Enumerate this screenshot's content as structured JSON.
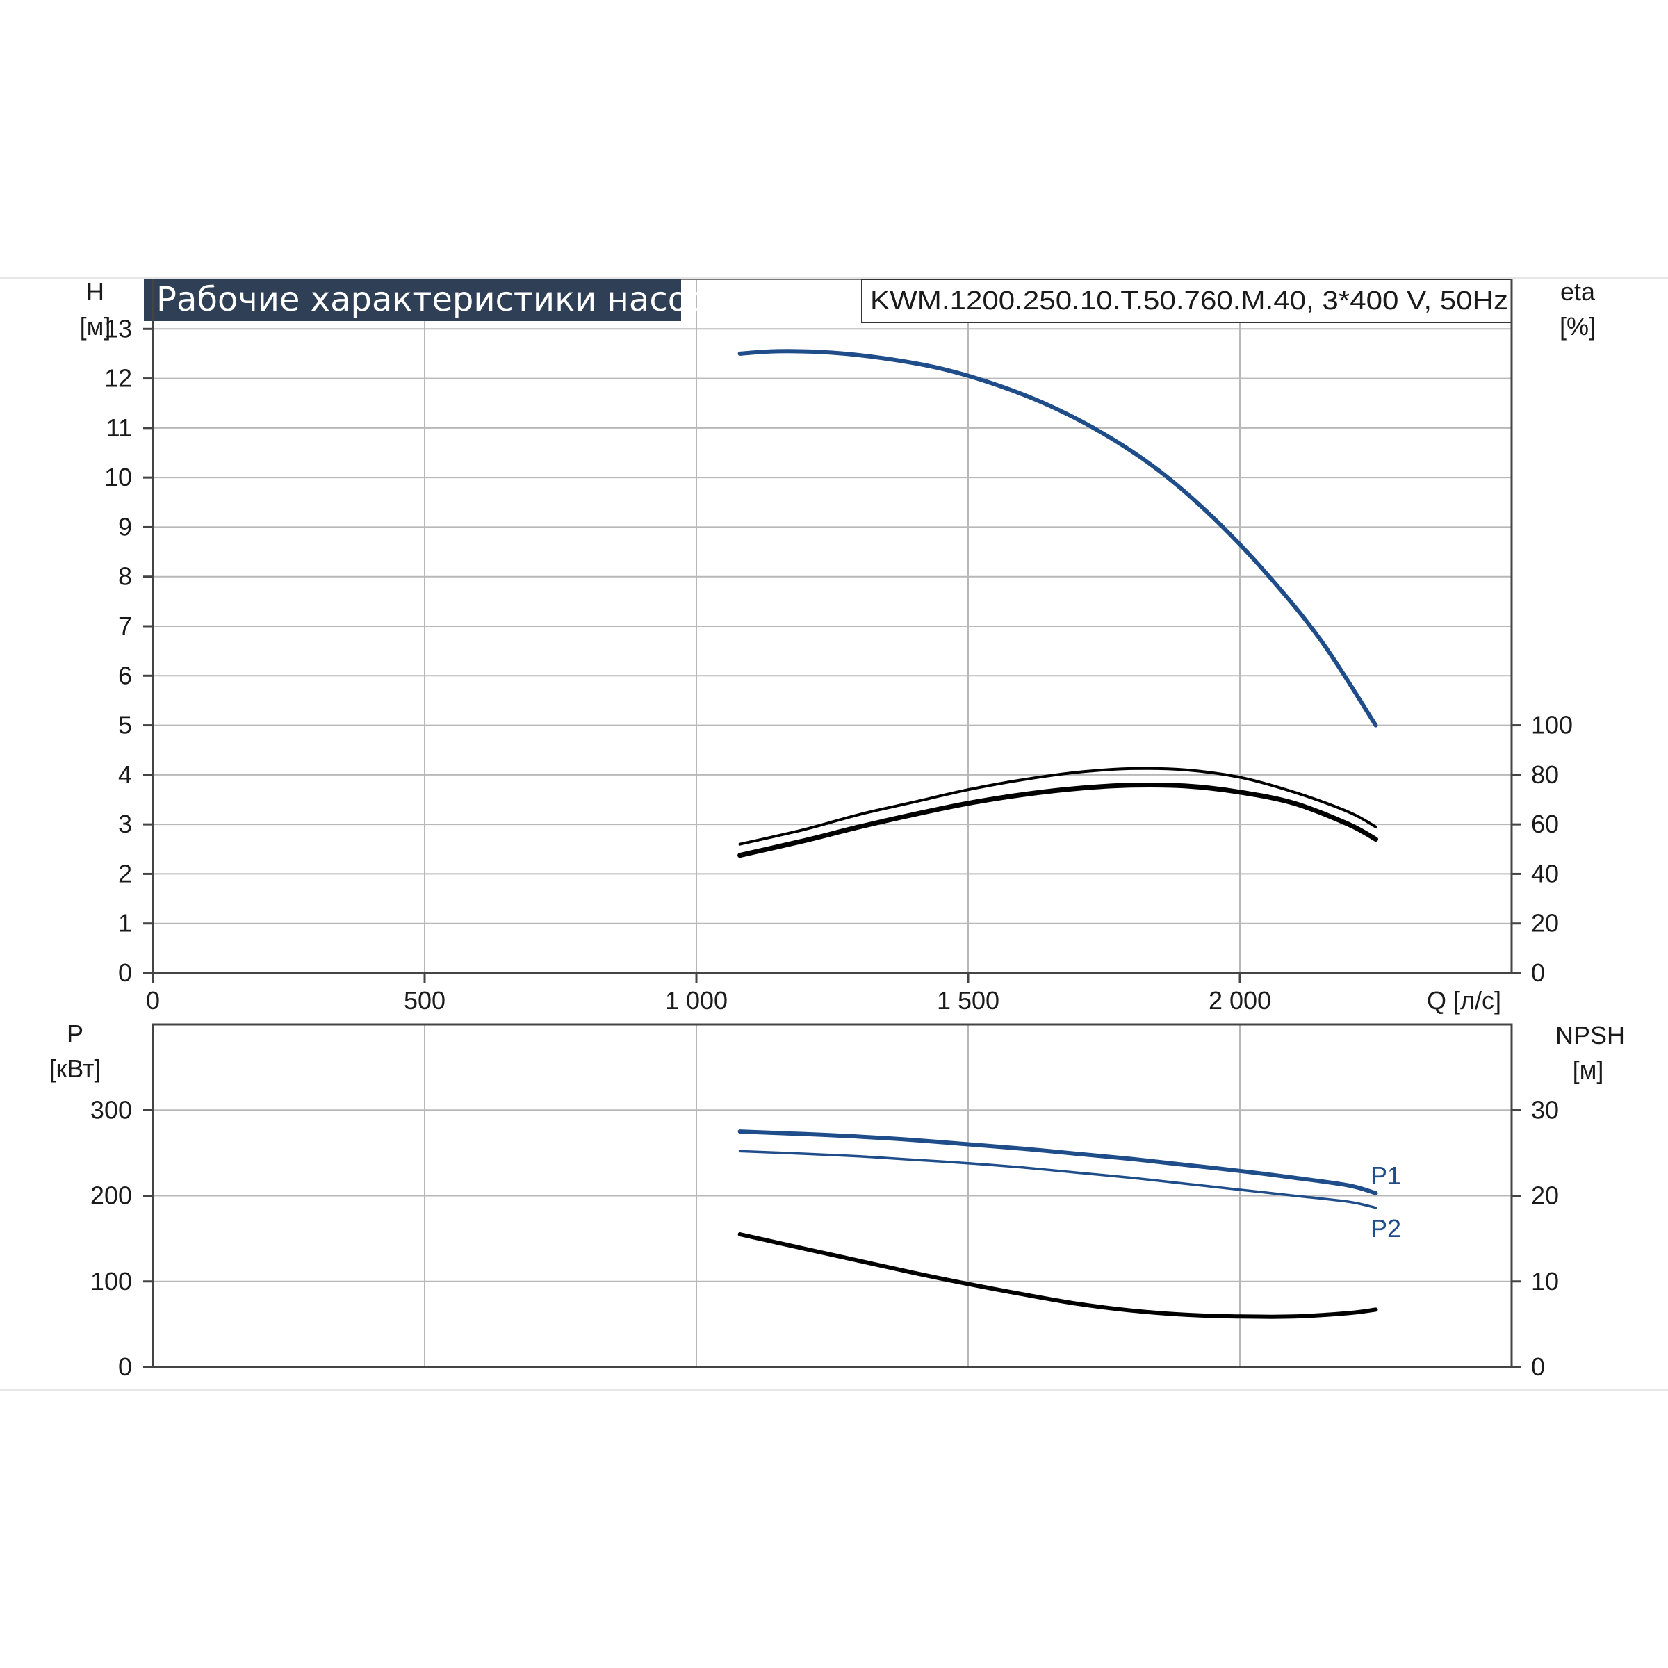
{
  "colors": {
    "head_curve": "#1f4d8a",
    "power_curve": "#1f4d8a",
    "efficiency_curve": "#000000",
    "npsh_curve": "#000000",
    "grid": "#b8b8b8",
    "title_bg": "#2f3f55"
  },
  "chart_data": [
    {
      "type": "line",
      "title": "Рабочие характеристики насоса",
      "subtitle": "KWM.1200.250.10.T.50.760.M.40, 3*400 V, 50Hz",
      "left_axis": {
        "label": "H",
        "unit": "[м]",
        "range": [
          0,
          14
        ],
        "ticks": [
          "0",
          "1",
          "2",
          "3",
          "4",
          "5",
          "6",
          "7",
          "8",
          "9",
          "10",
          "11",
          "12",
          "13"
        ]
      },
      "right_axis": {
        "label": "eta",
        "unit": "[%]",
        "range": [
          0,
          280
        ],
        "ticks": [
          "0",
          "20",
          "40",
          "60",
          "80",
          "100"
        ]
      },
      "x_axis": {
        "label": "Q [л/с]",
        "range": [
          0,
          2500
        ],
        "ticks": [
          "0",
          "500",
          "1 000",
          "1 500",
          "2 000"
        ]
      },
      "grid": true,
      "series": [
        {
          "axis": "left",
          "color": "#1f4d8a",
          "width": 6,
          "x": [
            1080,
            1150,
            1250,
            1350,
            1450,
            1550,
            1650,
            1750,
            1850,
            1950,
            2050,
            2150,
            2250
          ],
          "y": [
            12.5,
            12.55,
            12.52,
            12.4,
            12.2,
            11.88,
            11.45,
            10.88,
            10.15,
            9.2,
            8.05,
            6.7,
            5.0
          ]
        },
        {
          "axis": "right",
          "color": "#000000",
          "width": 4,
          "x": [
            1080,
            1200,
            1300,
            1400,
            1500,
            1600,
            1700,
            1800,
            1900,
            2000,
            2100,
            2200,
            2250
          ],
          "y": [
            52,
            58,
            64,
            69,
            74,
            78,
            81,
            82.5,
            82,
            79,
            73,
            65,
            59
          ]
        },
        {
          "axis": "right",
          "color": "#000000",
          "width": 7,
          "x": [
            1080,
            1200,
            1300,
            1400,
            1500,
            1600,
            1700,
            1800,
            1900,
            2000,
            2100,
            2200,
            2250
          ],
          "y": [
            47.5,
            53.5,
            59,
            64,
            68.5,
            72,
            74.5,
            75.8,
            75.5,
            73,
            68.5,
            60,
            54
          ]
        }
      ]
    },
    {
      "type": "line",
      "left_axis": {
        "label": "P",
        "unit": "[кВт]",
        "range": [
          0,
          400
        ],
        "ticks": [
          "0",
          "100",
          "200",
          "300"
        ]
      },
      "right_axis": {
        "label": "NPSH",
        "unit": "[м]",
        "range": [
          0,
          40
        ],
        "ticks": [
          "0",
          "10",
          "20",
          "30"
        ]
      },
      "x_axis": {
        "range": [
          0,
          2500
        ]
      },
      "grid": true,
      "series": [
        {
          "name": "P1",
          "axis": "left",
          "color": "#1f4d8a",
          "width": 6,
          "x": [
            1080,
            1200,
            1300,
            1400,
            1500,
            1600,
            1700,
            1800,
            1900,
            2000,
            2100,
            2200,
            2250
          ],
          "y": [
            275,
            272,
            269,
            265,
            260,
            255,
            249,
            243,
            236,
            229,
            221,
            212,
            203
          ]
        },
        {
          "name": "P2",
          "axis": "left",
          "color": "#1f4d8a",
          "width": 3.5,
          "x": [
            1080,
            1200,
            1300,
            1400,
            1500,
            1600,
            1700,
            1800,
            1900,
            2000,
            2100,
            2200,
            2250
          ],
          "y": [
            252,
            249,
            246,
            242,
            238,
            233,
            227,
            221,
            214,
            207,
            200,
            193,
            186
          ]
        },
        {
          "axis": "right",
          "color": "#000000",
          "width": 6,
          "x": [
            1080,
            1200,
            1300,
            1400,
            1500,
            1600,
            1700,
            1800,
            1900,
            2000,
            2100,
            2200,
            2250
          ],
          "y": [
            15.5,
            13.8,
            12.4,
            11.0,
            9.7,
            8.5,
            7.4,
            6.6,
            6.1,
            5.9,
            5.9,
            6.3,
            6.7
          ]
        }
      ]
    }
  ]
}
